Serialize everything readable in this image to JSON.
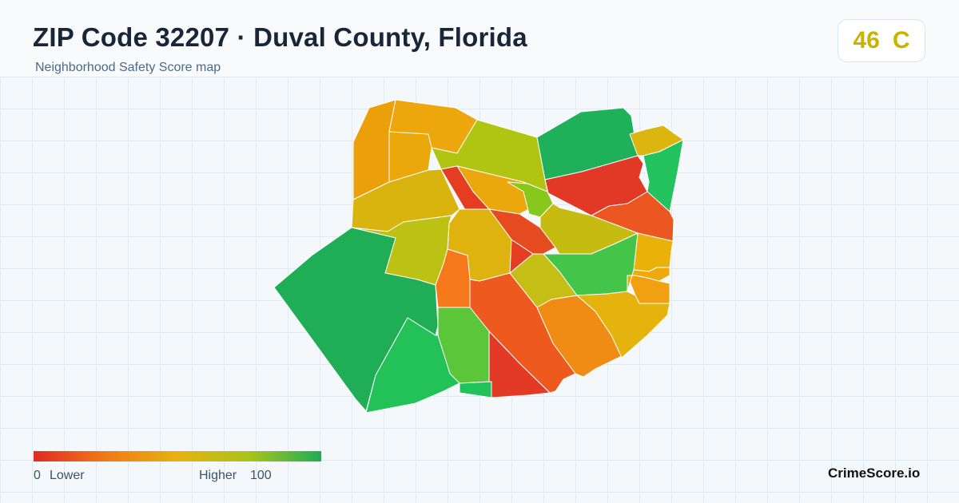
{
  "header": {
    "title": "ZIP Code 32207 · Duval County, Florida",
    "subtitle": "Neighborhood Safety Score map"
  },
  "score_badge": {
    "score": "46",
    "grade": "C",
    "color": "#c8b400"
  },
  "legend": {
    "min": "0",
    "low_label": "Lower",
    "high_label": "Higher",
    "max": "100",
    "gradient_colors": [
      "#e02a22",
      "#f07a18",
      "#e7b20f",
      "#a9c41b",
      "#1dae55"
    ]
  },
  "brand": "CrimeScore.io",
  "map": {
    "note_scale": "score 0-100, red = lower, green = higher",
    "regions": [
      {
        "id": "r01",
        "score": 34,
        "fill": "#eba009"
      },
      {
        "id": "r02",
        "score": 38,
        "fill": "#eda60b"
      },
      {
        "id": "r03",
        "score": 40,
        "fill": "#eaa80a"
      },
      {
        "id": "r04",
        "score": 62,
        "fill": "#b0c512"
      },
      {
        "id": "r05",
        "score": 85,
        "fill": "#1fb05a"
      },
      {
        "id": "r06",
        "score": 52,
        "fill": "#dcb50e"
      },
      {
        "id": "r07",
        "score": 88,
        "fill": "#22c35e"
      },
      {
        "id": "r08",
        "score": 10,
        "fill": "#e23826"
      },
      {
        "id": "r09",
        "score": 50,
        "fill": "#d9b40f"
      },
      {
        "id": "r10",
        "score": 40,
        "fill": "#eaa80c"
      },
      {
        "id": "r11",
        "score": 70,
        "fill": "#88c81c"
      },
      {
        "id": "r12",
        "score": 12,
        "fill": "#e43d22"
      },
      {
        "id": "r13",
        "score": 14,
        "fill": "#e64b20"
      },
      {
        "id": "r14",
        "score": 16,
        "fill": "#ec5620"
      },
      {
        "id": "r15",
        "score": 55,
        "fill": "#c6bc11"
      },
      {
        "id": "r16",
        "score": 48,
        "fill": "#dfb30f"
      },
      {
        "id": "r17",
        "score": 58,
        "fill": "#bcc113"
      },
      {
        "id": "r18",
        "score": 84,
        "fill": "#1fae55"
      },
      {
        "id": "r19",
        "score": 44,
        "fill": "#eab109"
      },
      {
        "id": "r20",
        "score": 26,
        "fill": "#f5791a"
      },
      {
        "id": "r21",
        "score": 18,
        "fill": "#ee5a1e"
      },
      {
        "id": "r22",
        "score": 60,
        "fill": "#c5be15"
      },
      {
        "id": "r23",
        "score": 80,
        "fill": "#44c448"
      },
      {
        "id": "r24",
        "score": 36,
        "fill": "#f0a010"
      },
      {
        "id": "r25",
        "score": 30,
        "fill": "#f08b14"
      },
      {
        "id": "r26",
        "score": 48,
        "fill": "#e4b30e"
      },
      {
        "id": "r27",
        "score": 40,
        "fill": "#eea90c"
      },
      {
        "id": "r28",
        "score": 76,
        "fill": "#5cc63b"
      },
      {
        "id": "r29",
        "score": 8,
        "fill": "#e23a25"
      },
      {
        "id": "r30",
        "score": 90,
        "fill": "#23c258"
      },
      {
        "id": "r31",
        "score": 86,
        "fill": "#22c35c"
      }
    ]
  }
}
